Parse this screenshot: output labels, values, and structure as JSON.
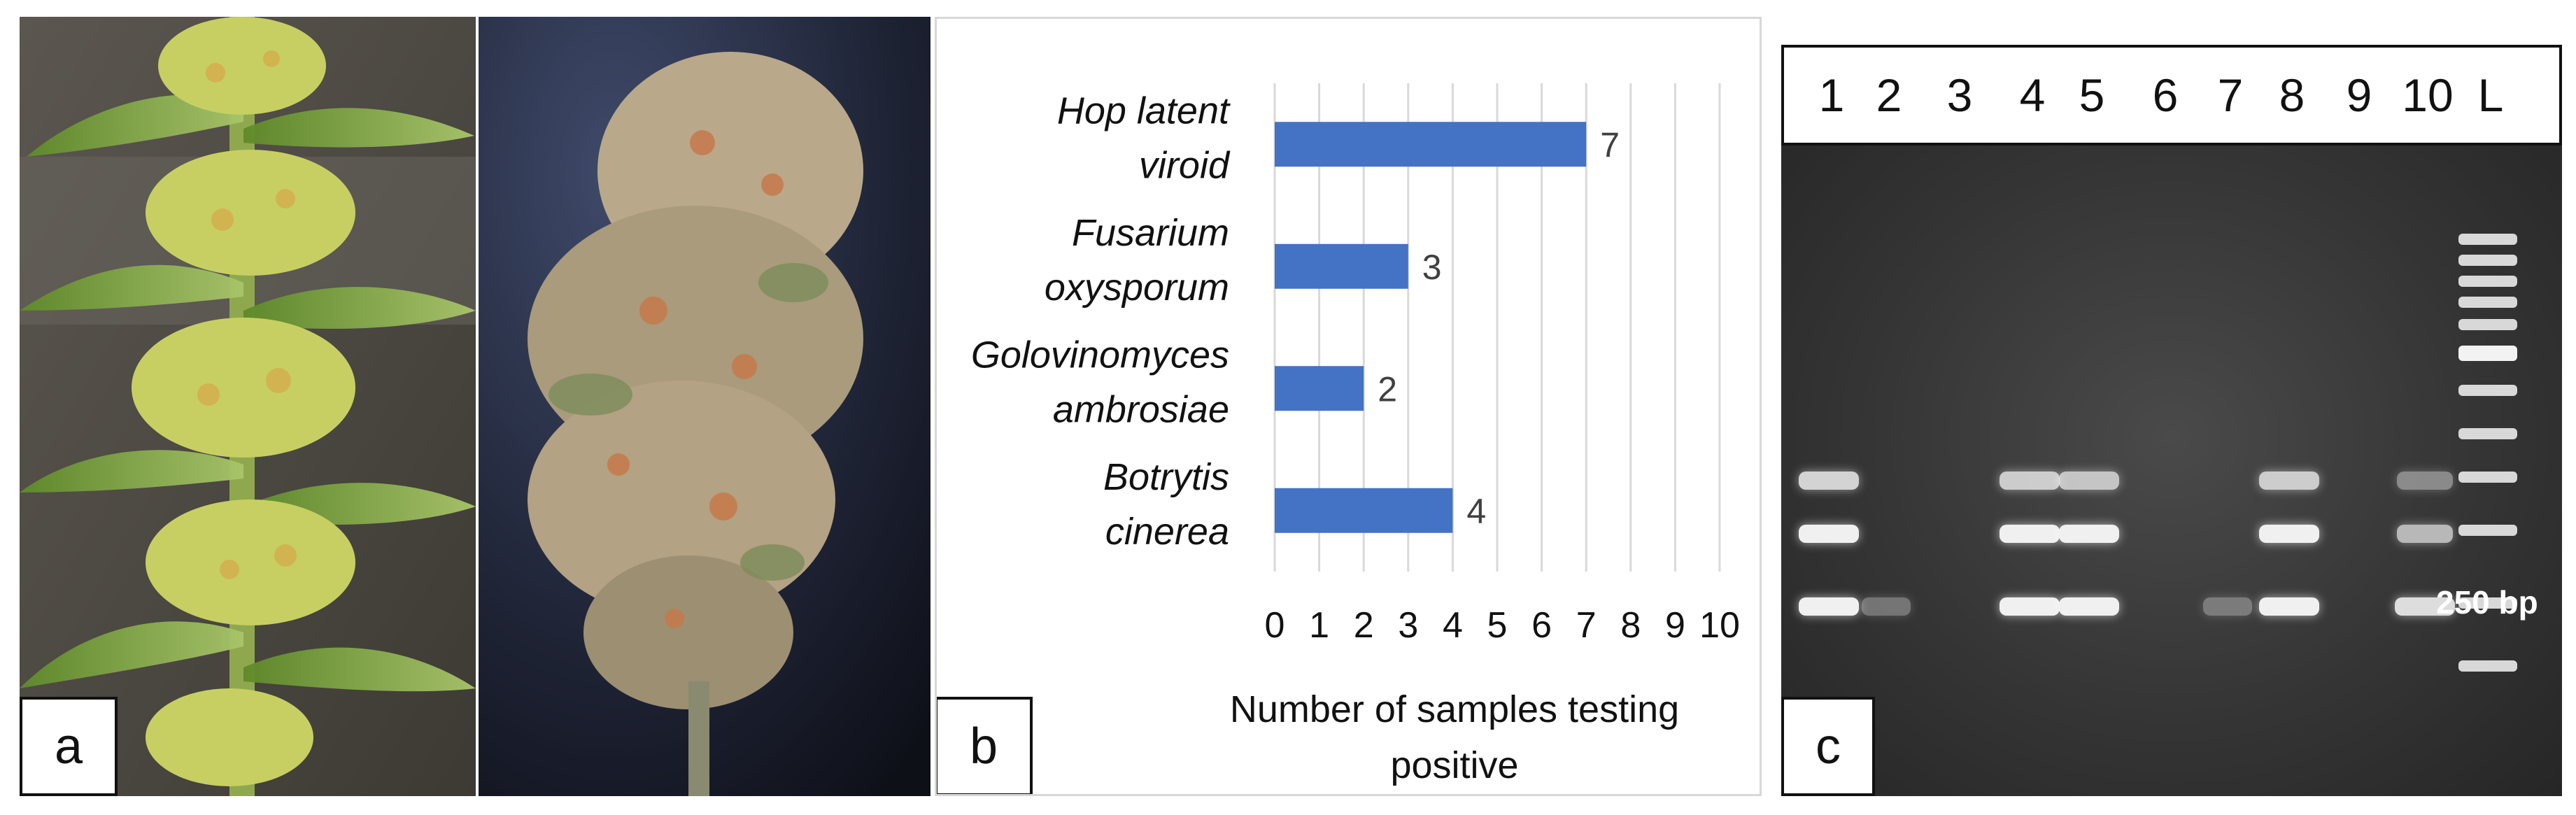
{
  "panel_labels": {
    "a": "a",
    "b": "b",
    "c": "c"
  },
  "chart_data": {
    "type": "bar",
    "orientation": "horizontal",
    "categories": [
      [
        "Hop latent",
        "viroid"
      ],
      [
        "Fusarium",
        "oxysporum"
      ],
      [
        "Golovinomyces",
        "ambrosiae"
      ],
      [
        "Botrytis",
        "cinerea"
      ]
    ],
    "values": [
      7,
      3,
      2,
      4
    ],
    "xlabel": [
      "Number of samples testing",
      "positive"
    ],
    "xlim": [
      0,
      10
    ],
    "xticks": [
      "0",
      "1",
      "2",
      "3",
      "4",
      "5",
      "6",
      "7",
      "8",
      "9",
      "10"
    ],
    "grid": "vertical",
    "bar_color": "#4472C4"
  },
  "gel": {
    "lanes": [
      "1",
      "2",
      "3",
      "4",
      "5",
      "6",
      "7",
      "8",
      "9",
      "10",
      "L"
    ],
    "marker_label": "250 bp"
  }
}
